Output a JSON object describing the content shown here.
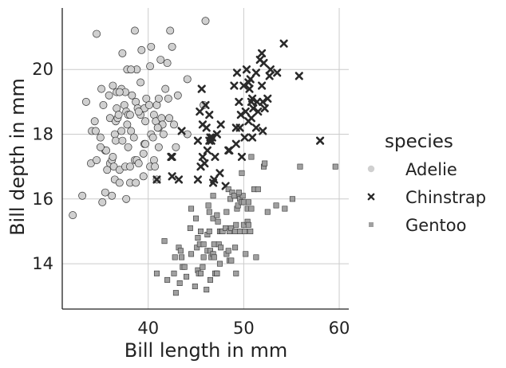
{
  "chart_data": {
    "type": "scatter",
    "xlabel": "Bill length in mm",
    "ylabel": "Bill depth in mm",
    "xlim": [
      31,
      61
    ],
    "ylim": [
      12.6,
      21.9
    ],
    "xticks": [
      40,
      50,
      60
    ],
    "yticks": [
      14,
      16,
      18,
      20
    ],
    "grid": true,
    "legend": {
      "title": "species",
      "placement": "right"
    },
    "series": [
      {
        "name": "Adelie",
        "marker": "circle",
        "color": "#d0d0d0",
        "points": [
          [
            32.1,
            15.5
          ],
          [
            33.1,
            16.1
          ],
          [
            33.5,
            19.0
          ],
          [
            34.0,
            17.1
          ],
          [
            34.1,
            18.1
          ],
          [
            34.4,
            18.4
          ],
          [
            34.5,
            18.1
          ],
          [
            34.6,
            21.1
          ],
          [
            34.6,
            17.2
          ],
          [
            35.0,
            17.9
          ],
          [
            35.1,
            19.4
          ],
          [
            35.2,
            15.9
          ],
          [
            35.3,
            18.9
          ],
          [
            35.5,
            17.5
          ],
          [
            35.5,
            16.2
          ],
          [
            35.6,
            17.5
          ],
          [
            35.7,
            16.9
          ],
          [
            35.9,
            19.2
          ],
          [
            36.0,
            18.5
          ],
          [
            36.0,
            17.1
          ],
          [
            36.2,
            17.2
          ],
          [
            36.2,
            16.1
          ],
          [
            36.3,
            19.5
          ],
          [
            36.4,
            17.0
          ],
          [
            36.5,
            18.0
          ],
          [
            36.5,
            16.6
          ],
          [
            36.6,
            17.8
          ],
          [
            36.6,
            18.4
          ],
          [
            36.7,
            19.3
          ],
          [
            36.7,
            18.8
          ],
          [
            36.8,
            18.5
          ],
          [
            36.9,
            18.6
          ],
          [
            37.0,
            16.9
          ],
          [
            37.0,
            16.5
          ],
          [
            37.2,
            18.1
          ],
          [
            37.2,
            19.4
          ],
          [
            37.3,
            17.8
          ],
          [
            37.3,
            20.5
          ],
          [
            37.5,
            18.9
          ],
          [
            37.6,
            17.0
          ],
          [
            37.6,
            19.3
          ],
          [
            37.7,
            18.7
          ],
          [
            37.7,
            16.0
          ],
          [
            37.8,
            18.3
          ],
          [
            37.8,
            20.0
          ],
          [
            37.9,
            18.6
          ],
          [
            38.1,
            18.6
          ],
          [
            38.1,
            17.0
          ],
          [
            38.1,
            16.5
          ],
          [
            38.2,
            18.1
          ],
          [
            38.3,
            19.2
          ],
          [
            38.5,
            17.9
          ],
          [
            38.6,
            21.2
          ],
          [
            38.6,
            17.2
          ],
          [
            38.7,
            19.0
          ],
          [
            38.8,
            17.2
          ],
          [
            38.8,
            20.0
          ],
          [
            38.9,
            18.8
          ],
          [
            39.0,
            17.1
          ],
          [
            39.1,
            18.7
          ],
          [
            39.2,
            19.6
          ],
          [
            39.2,
            18.6
          ],
          [
            39.3,
            20.6
          ],
          [
            39.5,
            16.7
          ],
          [
            39.5,
            17.4
          ],
          [
            39.6,
            18.8
          ],
          [
            39.6,
            17.7
          ],
          [
            39.7,
            17.7
          ],
          [
            39.7,
            18.4
          ],
          [
            39.8,
            19.1
          ],
          [
            40.1,
            18.9
          ],
          [
            40.2,
            17.0
          ],
          [
            40.2,
            20.1
          ],
          [
            40.3,
            18.0
          ],
          [
            40.5,
            17.9
          ],
          [
            40.6,
            18.6
          ],
          [
            40.6,
            17.2
          ],
          [
            40.7,
            17.0
          ],
          [
            40.8,
            18.4
          ],
          [
            40.9,
            16.6
          ],
          [
            40.9,
            18.9
          ],
          [
            41.1,
            19.1
          ],
          [
            41.1,
            17.6
          ],
          [
            41.1,
            18.2
          ],
          [
            41.3,
            20.3
          ],
          [
            41.4,
            18.5
          ],
          [
            41.5,
            18.3
          ],
          [
            41.6,
            18.0
          ],
          [
            41.8,
            19.4
          ],
          [
            42.0,
            20.2
          ],
          [
            42.1,
            19.1
          ],
          [
            42.2,
            18.5
          ],
          [
            42.3,
            21.2
          ],
          [
            42.5,
            20.7
          ],
          [
            42.7,
            18.3
          ],
          [
            42.9,
            17.6
          ],
          [
            43.1,
            19.2
          ],
          [
            44.1,
            19.7
          ],
          [
            44.1,
            18.0
          ],
          [
            45.8,
            18.9
          ],
          [
            46.0,
            21.5
          ],
          [
            37.0,
            19.3
          ],
          [
            38.2,
            20.0
          ],
          [
            39.0,
            18.7
          ],
          [
            40.3,
            20.7
          ],
          [
            41.0,
            18.2
          ],
          [
            35.0,
            17.6
          ],
          [
            36.3,
            17.3
          ],
          [
            38.7,
            16.5
          ],
          [
            37.9,
            17.6
          ]
        ]
      },
      {
        "name": "Chinstrap",
        "marker": "x",
        "color": "#2a2a2a",
        "points": [
          [
            40.9,
            16.6
          ],
          [
            42.4,
            17.3
          ],
          [
            42.5,
            16.7
          ],
          [
            42.5,
            17.3
          ],
          [
            43.2,
            16.6
          ],
          [
            43.5,
            18.1
          ],
          [
            45.2,
            16.6
          ],
          [
            45.2,
            17.8
          ],
          [
            45.4,
            18.7
          ],
          [
            45.5,
            17.0
          ],
          [
            45.6,
            19.4
          ],
          [
            45.7,
            17.3
          ],
          [
            45.9,
            17.1
          ],
          [
            46.0,
            18.9
          ],
          [
            46.1,
            18.2
          ],
          [
            46.2,
            17.5
          ],
          [
            46.4,
            17.8
          ],
          [
            46.4,
            18.6
          ],
          [
            46.5,
            17.9
          ],
          [
            46.6,
            17.8
          ],
          [
            46.7,
            17.9
          ],
          [
            46.8,
            16.5
          ],
          [
            46.9,
            16.6
          ],
          [
            47.0,
            17.3
          ],
          [
            47.5,
            16.8
          ],
          [
            48.1,
            16.4
          ],
          [
            48.5,
            17.5
          ],
          [
            49.0,
            19.5
          ],
          [
            49.2,
            18.2
          ],
          [
            49.3,
            19.9
          ],
          [
            49.5,
            19.0
          ],
          [
            49.6,
            18.2
          ],
          [
            49.7,
            18.6
          ],
          [
            49.8,
            17.3
          ],
          [
            50.0,
            19.5
          ],
          [
            50.1,
            17.9
          ],
          [
            50.2,
            18.7
          ],
          [
            50.3,
            20.0
          ],
          [
            50.5,
            18.4
          ],
          [
            50.5,
            19.6
          ],
          [
            50.6,
            19.4
          ],
          [
            50.7,
            19.7
          ],
          [
            50.8,
            18.5
          ],
          [
            50.8,
            19.0
          ],
          [
            50.9,
            17.9
          ],
          [
            51.0,
            18.8
          ],
          [
            51.3,
            18.2
          ],
          [
            51.3,
            19.9
          ],
          [
            51.4,
            19.0
          ],
          [
            51.5,
            18.7
          ],
          [
            51.7,
            20.3
          ],
          [
            51.9,
            19.5
          ],
          [
            52.0,
            18.1
          ],
          [
            52.0,
            19.0
          ],
          [
            52.2,
            18.8
          ],
          [
            52.5,
            19.1
          ],
          [
            52.7,
            19.8
          ],
          [
            52.8,
            20.0
          ],
          [
            53.5,
            19.9
          ],
          [
            54.2,
            20.8
          ],
          [
            55.8,
            19.8
          ],
          [
            58.0,
            17.8
          ],
          [
            47.6,
            18.3
          ],
          [
            48.4,
            17.5
          ],
          [
            49.2,
            17.7
          ],
          [
            45.7,
            18.3
          ],
          [
            47.2,
            18.0
          ],
          [
            50.9,
            19.1
          ],
          [
            51.9,
            20.5
          ],
          [
            52.1,
            20.2
          ]
        ]
      },
      {
        "name": "Gentoo",
        "marker": "square",
        "color": "#a0a0a0",
        "points": [
          [
            40.9,
            13.7
          ],
          [
            41.7,
            14.7
          ],
          [
            42.0,
            13.5
          ],
          [
            42.7,
            13.7
          ],
          [
            42.8,
            14.2
          ],
          [
            42.9,
            13.1
          ],
          [
            43.2,
            14.5
          ],
          [
            43.3,
            13.4
          ],
          [
            43.4,
            14.4
          ],
          [
            43.5,
            14.2
          ],
          [
            43.6,
            13.9
          ],
          [
            43.8,
            13.9
          ],
          [
            44.0,
            13.6
          ],
          [
            44.4,
            15.1
          ],
          [
            44.5,
            14.3
          ],
          [
            44.5,
            15.7
          ],
          [
            44.9,
            13.3
          ],
          [
            45.0,
            15.4
          ],
          [
            45.1,
            14.5
          ],
          [
            45.2,
            13.8
          ],
          [
            45.2,
            14.8
          ],
          [
            45.3,
            13.7
          ],
          [
            45.4,
            14.6
          ],
          [
            45.5,
            13.7
          ],
          [
            45.5,
            15.0
          ],
          [
            45.7,
            13.9
          ],
          [
            45.8,
            14.2
          ],
          [
            45.8,
            14.6
          ],
          [
            46.1,
            13.2
          ],
          [
            46.2,
            14.4
          ],
          [
            46.2,
            14.9
          ],
          [
            46.3,
            15.8
          ],
          [
            46.4,
            15.0
          ],
          [
            46.4,
            15.6
          ],
          [
            46.5,
            13.5
          ],
          [
            46.5,
            14.4
          ],
          [
            46.6,
            14.2
          ],
          [
            46.8,
            14.3
          ],
          [
            46.8,
            15.4
          ],
          [
            46.9,
            14.6
          ],
          [
            47.0,
            13.7
          ],
          [
            47.2,
            13.7
          ],
          [
            47.2,
            15.5
          ],
          [
            47.3,
            15.3
          ],
          [
            47.4,
            14.6
          ],
          [
            47.5,
            14.0
          ],
          [
            47.5,
            15.0
          ],
          [
            47.6,
            14.5
          ],
          [
            47.7,
            15.0
          ],
          [
            47.8,
            15.0
          ],
          [
            48.1,
            15.1
          ],
          [
            48.2,
            14.3
          ],
          [
            48.2,
            15.6
          ],
          [
            48.4,
            14.4
          ],
          [
            48.4,
            16.3
          ],
          [
            48.5,
            14.1
          ],
          [
            48.5,
            15.0
          ],
          [
            48.6,
            16.0
          ],
          [
            48.7,
            14.1
          ],
          [
            48.7,
            15.1
          ],
          [
            48.8,
            16.2
          ],
          [
            49.0,
            16.1
          ],
          [
            49.1,
            14.5
          ],
          [
            49.1,
            15.0
          ],
          [
            49.2,
            15.2
          ],
          [
            49.3,
            15.7
          ],
          [
            49.4,
            15.8
          ],
          [
            49.5,
            16.1
          ],
          [
            49.6,
            15.0
          ],
          [
            49.6,
            16.0
          ],
          [
            49.8,
            15.9
          ],
          [
            49.8,
            16.8
          ],
          [
            49.9,
            16.1
          ],
          [
            50.0,
            15.2
          ],
          [
            50.0,
            15.9
          ],
          [
            50.1,
            15.0
          ],
          [
            50.2,
            14.3
          ],
          [
            50.4,
            15.3
          ],
          [
            50.4,
            15.7
          ],
          [
            50.5,
            15.2
          ],
          [
            50.5,
            15.9
          ],
          [
            50.7,
            15.0
          ],
          [
            50.8,
            15.7
          ],
          [
            50.8,
            17.3
          ],
          [
            51.1,
            16.3
          ],
          [
            51.3,
            14.2
          ],
          [
            51.5,
            16.3
          ],
          [
            52.1,
            17.0
          ],
          [
            52.2,
            17.1
          ],
          [
            52.5,
            15.6
          ],
          [
            53.4,
            15.8
          ],
          [
            54.3,
            15.7
          ],
          [
            55.1,
            16.0
          ],
          [
            55.9,
            17.0
          ],
          [
            59.6,
            17.0
          ],
          [
            49.2,
            13.7
          ],
          [
            49.5,
            16.2
          ],
          [
            47.2,
            13.7
          ],
          [
            46.8,
            16.1
          ],
          [
            46.9,
            14.2
          ]
        ]
      }
    ]
  }
}
